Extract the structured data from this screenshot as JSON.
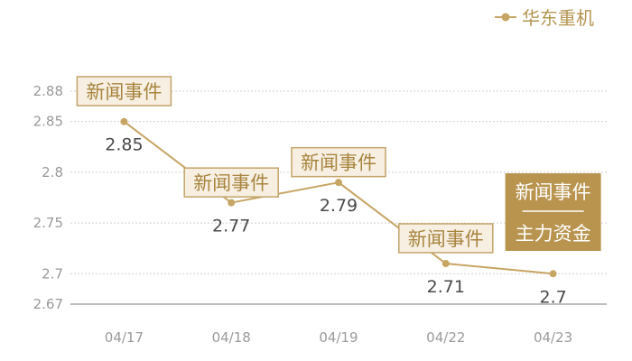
{
  "colors": {
    "line": "#c7a565",
    "news_bg": "#f6efe2",
    "news_border": "#c4a46a",
    "highlight_bg": "#b8944f",
    "grid": "#d0d0d0",
    "axis": "#7a7a7a"
  },
  "legend": {
    "label": "华东重机",
    "icon": "line-dot-legend-icon"
  },
  "chart_data": {
    "type": "line",
    "categories": [
      "04/17",
      "04/18",
      "04/19",
      "04/22",
      "04/23"
    ],
    "series": [
      {
        "name": "华东重机",
        "values": [
          2.85,
          2.77,
          2.79,
          2.71,
          2.7
        ]
      }
    ],
    "data_labels": [
      "2.85",
      "2.77",
      "2.79",
      "2.71",
      "2.7"
    ],
    "yticks": [
      2.67,
      2.7,
      2.75,
      2.8,
      2.85,
      2.88
    ],
    "ytick_labels": [
      "2.67",
      "2.7",
      "2.75",
      "2.8",
      "2.85",
      "2.88"
    ],
    "ylim": [
      2.67,
      2.88
    ],
    "grid": true,
    "legend_position": "top-right",
    "annotations": [
      {
        "label": "新闻事件",
        "category": "04/17",
        "value": 2.88
      },
      {
        "label": "新闻事件",
        "category": "04/18",
        "value": 2.79
      },
      {
        "label": "新闻事件",
        "category": "04/19",
        "value": 2.81
      },
      {
        "label": "新闻事件",
        "category": "04/22",
        "value": 2.735
      }
    ],
    "highlight": {
      "line1": "新闻事件",
      "line2": "主力资金",
      "category": "04/23"
    }
  }
}
